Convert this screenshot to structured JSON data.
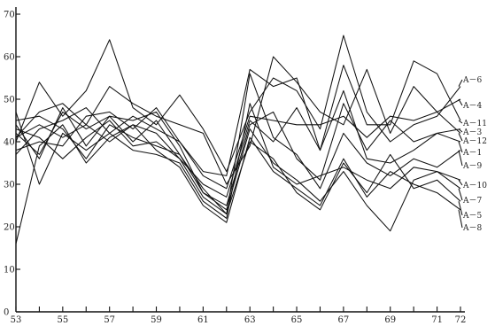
{
  "chart_data": {
    "type": "line",
    "title": "",
    "xlabel": "",
    "ylabel": "",
    "xlim": [
      53,
      72
    ],
    "ylim": [
      0,
      70
    ],
    "x": [
      53,
      54,
      55,
      56,
      57,
      58,
      59,
      60,
      61,
      62,
      63,
      64,
      65,
      66,
      67,
      68,
      69,
      70,
      71,
      72
    ],
    "x_tick_labels": [
      "53",
      "55",
      "57",
      "59",
      "61",
      "63",
      "65",
      "67",
      "69",
      "71",
      "72"
    ],
    "y_tick_labels": [
      "0",
      "10",
      "20",
      "30",
      "40",
      "50",
      "60",
      "70"
    ],
    "line_color": "#111111",
    "series": [
      {
        "name": "A－6",
        "values": [
          40,
          54,
          46,
          52,
          64,
          48,
          44,
          51,
          43,
          33,
          47,
          55,
          52,
          43,
          65,
          47,
          40,
          44,
          46,
          53
        ]
      },
      {
        "name": "A－4",
        "values": [
          41,
          47,
          49,
          44,
          53,
          49,
          46,
          44,
          42,
          30,
          39,
          60,
          54,
          47,
          44,
          57,
          42,
          53,
          47,
          50
        ]
      },
      {
        "name": "A－11",
        "values": [
          37,
          43,
          45,
          48,
          42,
          46,
          43,
          40,
          33,
          32,
          57,
          53,
          55,
          38,
          58,
          44,
          44,
          59,
          56,
          45
        ]
      },
      {
        "name": "A－3",
        "values": [
          42,
          37,
          47,
          43,
          46,
          45,
          47,
          39,
          28,
          25,
          44,
          47,
          36,
          31,
          49,
          38,
          45,
          40,
          42,
          43
        ]
      },
      {
        "name": "A－12",
        "values": [
          38,
          40,
          39,
          46,
          47,
          43,
          48,
          40,
          32,
          29,
          46,
          45,
          44,
          44,
          46,
          41,
          46,
          45,
          47,
          42
        ]
      },
      {
        "name": "A－1",
        "values": [
          41,
          44,
          41,
          44,
          40,
          44,
          42,
          36,
          30,
          27,
          45,
          40,
          48,
          38,
          52,
          36,
          35,
          38,
          42,
          40
        ]
      },
      {
        "name": "A－9",
        "values": [
          44,
          36,
          48,
          39,
          46,
          40,
          45,
          37,
          29,
          23,
          56,
          41,
          37,
          29,
          42,
          35,
          32,
          36,
          34,
          38
        ]
      },
      {
        "name": "A－10",
        "values": [
          47,
          30,
          42,
          38,
          42,
          38,
          37,
          35,
          26,
          22,
          49,
          34,
          30,
          32,
          34,
          31,
          29,
          34,
          33,
          31
        ]
      },
      {
        "name": "A－7",
        "values": [
          45,
          46,
          43,
          36,
          44,
          41,
          39,
          37,
          28,
          24,
          43,
          35,
          31,
          26,
          33,
          25,
          19,
          31,
          33,
          29
        ]
      },
      {
        "name": "A－5",
        "values": [
          43,
          41,
          36,
          41,
          45,
          39,
          40,
          36,
          27,
          23,
          40,
          36,
          28,
          24,
          35,
          28,
          37,
          29,
          31,
          26
        ]
      },
      {
        "name": "A－8",
        "values": [
          16,
          39,
          44,
          35,
          41,
          44,
          38,
          34,
          25,
          21,
          41,
          33,
          29,
          25,
          36,
          27,
          33,
          30,
          28,
          24
        ]
      }
    ]
  }
}
